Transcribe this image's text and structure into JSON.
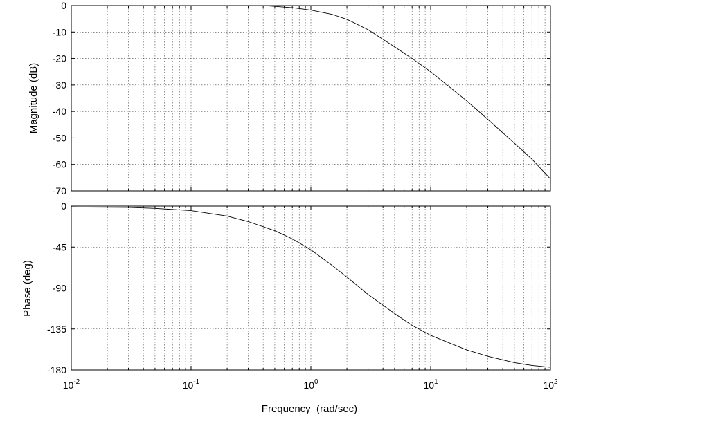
{
  "chart_data": [
    {
      "type": "line",
      "name": "magnitude",
      "xscale": "log",
      "xlim": [
        0.01,
        100
      ],
      "ylim": [
        -70,
        0
      ],
      "yticks": [
        0,
        -10,
        -20,
        -30,
        -40,
        -50,
        -60,
        -70
      ],
      "ytick_labels": [
        "0",
        "-10",
        "-20",
        "-30",
        "-40",
        "-50",
        "-60",
        "-70"
      ],
      "ylabel": "Magnitude (dB)",
      "xlabel": "",
      "grid": true,
      "x": [
        0.4,
        0.5,
        0.7,
        1,
        1.5,
        2,
        3,
        5,
        7,
        10,
        20,
        30,
        50,
        70,
        100
      ],
      "y": [
        0,
        -0.3,
        -0.8,
        -1.7,
        -3.3,
        -5.2,
        -9.1,
        -15.6,
        -20,
        -25,
        -36,
        -43,
        -52,
        -58,
        -65.5
      ]
    },
    {
      "type": "line",
      "name": "phase",
      "xscale": "log",
      "xlim": [
        0.01,
        100
      ],
      "ylim": [
        -180,
        0
      ],
      "yticks": [
        0,
        -45,
        -90,
        -135,
        -180
      ],
      "ytick_labels": [
        "0",
        "-45",
        "-90",
        "-135",
        "-180"
      ],
      "ylabel": "Phase (deg)",
      "xlabel": "Frequency  (rad/sec)",
      "xticks": [
        0.01,
        0.1,
        1,
        10,
        100
      ],
      "xtick_labels": [
        {
          "base": "10",
          "exp": "-2"
        },
        {
          "base": "10",
          "exp": "-1"
        },
        {
          "base": "10",
          "exp": "0"
        },
        {
          "base": "10",
          "exp": "1"
        },
        {
          "base": "10",
          "exp": "2"
        }
      ],
      "grid": true,
      "x": [
        0.01,
        0.03,
        0.05,
        0.1,
        0.2,
        0.3,
        0.5,
        0.7,
        1,
        1.5,
        2,
        3,
        5,
        7,
        10,
        20,
        30,
        50,
        70,
        100
      ],
      "y": [
        -1,
        -1.5,
        -2.5,
        -5,
        -11,
        -17,
        -27,
        -36,
        -48,
        -65,
        -78,
        -97,
        -118,
        -131,
        -142,
        -158,
        -165,
        -172,
        -175,
        -177
      ]
    }
  ]
}
